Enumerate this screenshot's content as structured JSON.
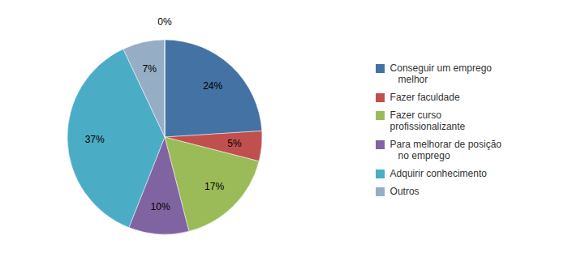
{
  "chart_data": {
    "type": "pie",
    "categories": [
      "Conseguir um emprego\n   melhor",
      "Fazer faculdade",
      "Fazer curso\nprofissionalizante",
      "Para melhorar de posição\n   no emprego",
      "Adquirir conhecimento",
      "Outros",
      null
    ],
    "values": [
      24,
      5,
      17,
      10,
      37,
      7,
      0.001
    ],
    "value_labels": [
      "24%",
      "5%",
      "17%",
      "10%",
      "37%",
      "7%",
      "0%"
    ],
    "colors": [
      "#4472a4",
      "#c0504d",
      "#9bbb59",
      "#8064a2",
      "#4bacc6",
      "#95aec5",
      "#95aec5"
    ],
    "data_labels": true,
    "legend": "right"
  }
}
